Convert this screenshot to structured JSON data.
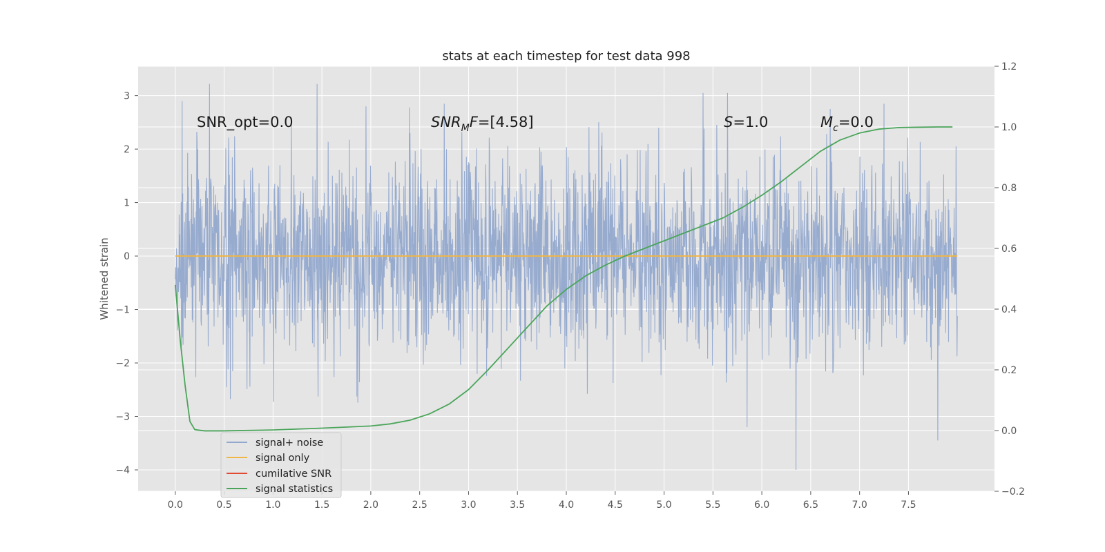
{
  "chart_data": {
    "type": "line",
    "title": "stats at each timestep for test data 998",
    "ylabel": "Whitened strain",
    "y2label": "",
    "xlim": [
      -0.38,
      8.38
    ],
    "ylim": [
      -4.4,
      3.55
    ],
    "y2lim": [
      -0.2,
      1.2
    ],
    "xticks": [
      "0.0",
      "0.5",
      "1.0",
      "1.5",
      "2.0",
      "2.5",
      "3.0",
      "3.5",
      "4.0",
      "4.5",
      "5.0",
      "5.5",
      "6.0",
      "6.5",
      "7.0",
      "7.5"
    ],
    "yticks": [
      "3",
      "2",
      "1",
      "0",
      "−1",
      "−2",
      "−3",
      "−4"
    ],
    "y2ticks": [
      "1.2",
      "1.0",
      "0.8",
      "0.6",
      "0.4",
      "0.2",
      "0.0",
      "−0.2"
    ],
    "grid": true,
    "legend_position": "lower-left",
    "annotations": {
      "snr_opt": "SNR_opt=0.0",
      "snr_mf_main": "SNR",
      "snr_mf_sub": "M",
      "snr_mf_tail": "F",
      "snr_mf_value": "=[4.58]",
      "s_label": "S",
      "s_value": "=1.0",
      "mc_label": "M",
      "mc_sub": "c",
      "mc_value": "=0.0"
    },
    "series": [
      {
        "name": "signal+ noise",
        "color": "#92a8cd",
        "axis": "left",
        "style": "noise",
        "x_range": [
          0.0,
          8.0
        ],
        "envelope": [
          -2.0,
          1.5
        ],
        "max": 3.22,
        "min": -4.0,
        "notable_peaks": [
          [
            0.07,
            2.9
          ],
          [
            0.35,
            3.22
          ],
          [
            1.45,
            3.22
          ],
          [
            1.95,
            2.8
          ],
          [
            2.75,
            2.85
          ],
          [
            5.4,
            3.05
          ],
          [
            5.65,
            3.05
          ],
          [
            5.85,
            -3.2
          ],
          [
            6.35,
            -4.0
          ],
          [
            6.7,
            2.75
          ],
          [
            7.25,
            2.85
          ],
          [
            7.8,
            -3.45
          ]
        ]
      },
      {
        "name": "signal only",
        "color": "#f0b542",
        "axis": "left",
        "x": [
          0.0,
          8.0
        ],
        "y": [
          0.0,
          0.0
        ]
      },
      {
        "name": "cumilative SNR",
        "color": "#e24a33",
        "axis": "left",
        "x": [],
        "y": []
      },
      {
        "name": "signal statistics",
        "color": "#4aa55a",
        "axis": "right",
        "x": [
          0.0,
          0.05,
          0.1,
          0.15,
          0.2,
          0.3,
          0.5,
          1.0,
          1.5,
          2.0,
          2.2,
          2.4,
          2.6,
          2.8,
          3.0,
          3.2,
          3.4,
          3.6,
          3.8,
          4.0,
          4.2,
          4.4,
          4.6,
          4.8,
          5.0,
          5.2,
          5.4,
          5.6,
          5.8,
          6.0,
          6.2,
          6.4,
          6.6,
          6.8,
          7.0,
          7.2,
          7.4,
          7.6,
          7.8,
          7.95
        ],
        "y": [
          0.48,
          0.3,
          0.15,
          0.03,
          0.003,
          -0.001,
          -0.001,
          0.002,
          0.008,
          0.015,
          0.022,
          0.034,
          0.055,
          0.087,
          0.135,
          0.2,
          0.27,
          0.34,
          0.41,
          0.465,
          0.51,
          0.545,
          0.575,
          0.6,
          0.625,
          0.65,
          0.675,
          0.7,
          0.735,
          0.775,
          0.82,
          0.87,
          0.92,
          0.957,
          0.98,
          0.993,
          0.998,
          0.999,
          1.0,
          1.0
        ]
      }
    ]
  }
}
